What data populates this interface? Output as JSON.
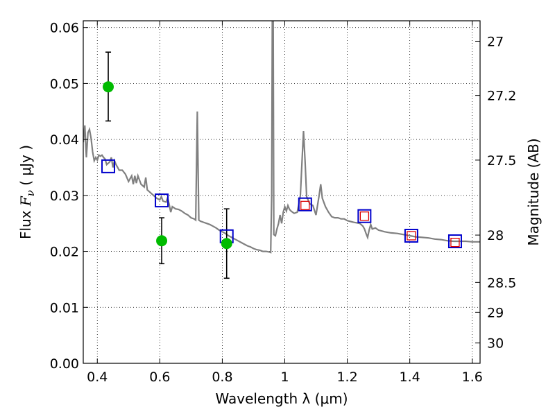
{
  "chart_data": {
    "type": "scatter",
    "xlabel": "Wavelength  λ (μm)",
    "ylabel": "Flux  F_ν  ( μJy )",
    "ylabel_parts": {
      "pre": "Flux  ",
      "var": "F",
      "sub": "ν",
      "post": "  ( μJy )"
    },
    "y2label": "Magnitude (AB)",
    "xlim": [
      0.355,
      1.625
    ],
    "ylim": [
      0.0,
      0.0612
    ],
    "grid": true,
    "x_ticks": [
      {
        "value": 0.4,
        "label": "0.4"
      },
      {
        "value": 0.6,
        "label": "0.6"
      },
      {
        "value": 0.8,
        "label": "0.8"
      },
      {
        "value": 1.0,
        "label": "1"
      },
      {
        "value": 1.2,
        "label": "1.2"
      },
      {
        "value": 1.4,
        "label": "1.4"
      },
      {
        "value": 1.6,
        "label": "1.6"
      }
    ],
    "y_ticks": [
      {
        "value": 0.0,
        "label": "0.00"
      },
      {
        "value": 0.01,
        "label": "0.01"
      },
      {
        "value": 0.02,
        "label": "0.02"
      },
      {
        "value": 0.03,
        "label": "0.03"
      },
      {
        "value": 0.04,
        "label": "0.04"
      },
      {
        "value": 0.05,
        "label": "0.05"
      },
      {
        "value": 0.06,
        "label": "0.06"
      }
    ],
    "y2_ticks": [
      {
        "value": 27,
        "label": "27"
      },
      {
        "value": 27.2,
        "label": "27.2"
      },
      {
        "value": 27.5,
        "label": "27.5"
      },
      {
        "value": 28,
        "label": "28"
      },
      {
        "value": 28.5,
        "label": "28.5"
      },
      {
        "value": 29,
        "label": "29"
      },
      {
        "value": 30,
        "label": "30"
      }
    ],
    "series": [
      {
        "kind": "line",
        "color": "#808080",
        "points": [
          [
            0.355,
            0.0395
          ],
          [
            0.36,
            0.0425
          ],
          [
            0.365,
            0.0368
          ],
          [
            0.37,
            0.0412
          ],
          [
            0.375,
            0.0418
          ],
          [
            0.38,
            0.0402
          ],
          [
            0.385,
            0.0378
          ],
          [
            0.39,
            0.0362
          ],
          [
            0.395,
            0.0368
          ],
          [
            0.4,
            0.0363
          ],
          [
            0.405,
            0.0372
          ],
          [
            0.41,
            0.037
          ],
          [
            0.415,
            0.0372
          ],
          [
            0.42,
            0.0368
          ],
          [
            0.425,
            0.0365
          ],
          [
            0.43,
            0.0355
          ],
          [
            0.44,
            0.036
          ],
          [
            0.445,
            0.0368
          ],
          [
            0.45,
            0.035
          ],
          [
            0.455,
            0.0362
          ],
          [
            0.46,
            0.0355
          ],
          [
            0.47,
            0.0345
          ],
          [
            0.48,
            0.0345
          ],
          [
            0.49,
            0.0338
          ],
          [
            0.5,
            0.0325
          ],
          [
            0.51,
            0.0335
          ],
          [
            0.515,
            0.032
          ],
          [
            0.52,
            0.0335
          ],
          [
            0.525,
            0.0322
          ],
          [
            0.53,
            0.0335
          ],
          [
            0.54,
            0.032
          ],
          [
            0.55,
            0.0315
          ],
          [
            0.555,
            0.0332
          ],
          [
            0.56,
            0.031
          ],
          [
            0.57,
            0.0305
          ],
          [
            0.58,
            0.03
          ],
          [
            0.59,
            0.0295
          ],
          [
            0.6,
            0.0292
          ],
          [
            0.605,
            0.0298
          ],
          [
            0.61,
            0.029
          ],
          [
            0.62,
            0.0288
          ],
          [
            0.625,
            0.0296
          ],
          [
            0.63,
            0.0284
          ],
          [
            0.635,
            0.027
          ],
          [
            0.64,
            0.028
          ],
          [
            0.65,
            0.0276
          ],
          [
            0.66,
            0.0275
          ],
          [
            0.67,
            0.0272
          ],
          [
            0.68,
            0.0268
          ],
          [
            0.69,
            0.0265
          ],
          [
            0.7,
            0.026
          ],
          [
            0.71,
            0.0258
          ],
          [
            0.715,
            0.0256
          ],
          [
            0.72,
            0.045
          ],
          [
            0.725,
            0.0256
          ],
          [
            0.73,
            0.0254
          ],
          [
            0.74,
            0.0252
          ],
          [
            0.75,
            0.025
          ],
          [
            0.76,
            0.0248
          ],
          [
            0.77,
            0.0245
          ],
          [
            0.78,
            0.0242
          ],
          [
            0.79,
            0.0238
          ],
          [
            0.8,
            0.0235
          ],
          [
            0.81,
            0.0232
          ],
          [
            0.82,
            0.0228
          ],
          [
            0.83,
            0.0225
          ],
          [
            0.84,
            0.0222
          ],
          [
            0.85,
            0.0219
          ],
          [
            0.86,
            0.0216
          ],
          [
            0.87,
            0.0213
          ],
          [
            0.88,
            0.021
          ],
          [
            0.89,
            0.0208
          ],
          [
            0.9,
            0.0205
          ],
          [
            0.91,
            0.0203
          ],
          [
            0.92,
            0.0202
          ],
          [
            0.93,
            0.02
          ],
          [
            0.94,
            0.02
          ],
          [
            0.95,
            0.0199
          ],
          [
            0.955,
            0.0198
          ],
          [
            0.958,
            0.03
          ],
          [
            0.96,
            0.0612
          ],
          [
            0.963,
            0.0612
          ],
          [
            0.965,
            0.023
          ],
          [
            0.97,
            0.0228
          ],
          [
            0.975,
            0.024
          ],
          [
            0.98,
            0.025
          ],
          [
            0.985,
            0.0265
          ],
          [
            0.99,
            0.025
          ],
          [
            0.995,
            0.027
          ],
          [
            1.0,
            0.028
          ],
          [
            1.005,
            0.0272
          ],
          [
            1.01,
            0.0282
          ],
          [
            1.015,
            0.0275
          ],
          [
            1.02,
            0.0272
          ],
          [
            1.03,
            0.0268
          ],
          [
            1.04,
            0.027
          ],
          [
            1.05,
            0.03
          ],
          [
            1.055,
            0.036
          ],
          [
            1.06,
            0.0415
          ],
          [
            1.065,
            0.036
          ],
          [
            1.07,
            0.0298
          ],
          [
            1.08,
            0.0285
          ],
          [
            1.09,
            0.0282
          ],
          [
            1.1,
            0.0265
          ],
          [
            1.11,
            0.03
          ],
          [
            1.115,
            0.032
          ],
          [
            1.12,
            0.0295
          ],
          [
            1.13,
            0.028
          ],
          [
            1.14,
            0.027
          ],
          [
            1.15,
            0.0262
          ],
          [
            1.16,
            0.026
          ],
          [
            1.17,
            0.026
          ],
          [
            1.18,
            0.0258
          ],
          [
            1.19,
            0.0258
          ],
          [
            1.2,
            0.0255
          ],
          [
            1.22,
            0.0252
          ],
          [
            1.24,
            0.025
          ],
          [
            1.25,
            0.0245
          ],
          [
            1.255,
            0.024
          ],
          [
            1.26,
            0.0232
          ],
          [
            1.265,
            0.0225
          ],
          [
            1.27,
            0.0238
          ],
          [
            1.275,
            0.0248
          ],
          [
            1.28,
            0.024
          ],
          [
            1.29,
            0.0242
          ],
          [
            1.3,
            0.0238
          ],
          [
            1.32,
            0.0235
          ],
          [
            1.34,
            0.0233
          ],
          [
            1.36,
            0.0232
          ],
          [
            1.38,
            0.023
          ],
          [
            1.4,
            0.0228
          ],
          [
            1.42,
            0.0226
          ],
          [
            1.44,
            0.0225
          ],
          [
            1.46,
            0.0224
          ],
          [
            1.48,
            0.0222
          ],
          [
            1.5,
            0.0221
          ],
          [
            1.52,
            0.0219
          ],
          [
            1.54,
            0.0218
          ],
          [
            1.56,
            0.0218
          ],
          [
            1.58,
            0.0218
          ],
          [
            1.6,
            0.0217
          ],
          [
            1.625,
            0.0217
          ]
        ]
      },
      {
        "kind": "errorbar",
        "color": "#00bb00",
        "points": [
          {
            "x": 0.435,
            "y": 0.0494,
            "lo": 0.0433,
            "hi": 0.0556
          },
          {
            "x": 0.606,
            "y": 0.0219,
            "lo": 0.0178,
            "hi": 0.026
          },
          {
            "x": 0.814,
            "y": 0.0214,
            "lo": 0.0152,
            "hi": 0.0276
          }
        ]
      },
      {
        "kind": "model-photometry",
        "color": "#0000cc",
        "points": [
          [
            0.435,
            0.0352
          ],
          [
            0.606,
            0.0291
          ],
          [
            0.814,
            0.0227
          ],
          [
            1.065,
            0.0284
          ],
          [
            1.255,
            0.0263
          ],
          [
            1.405,
            0.0228
          ],
          [
            1.545,
            0.0218
          ]
        ]
      },
      {
        "kind": "ir-photometry",
        "color": "#dd0000",
        "points": [
          [
            1.065,
            0.0282
          ],
          [
            1.255,
            0.0263
          ],
          [
            1.405,
            0.0228
          ],
          [
            1.545,
            0.0216
          ]
        ]
      }
    ]
  }
}
